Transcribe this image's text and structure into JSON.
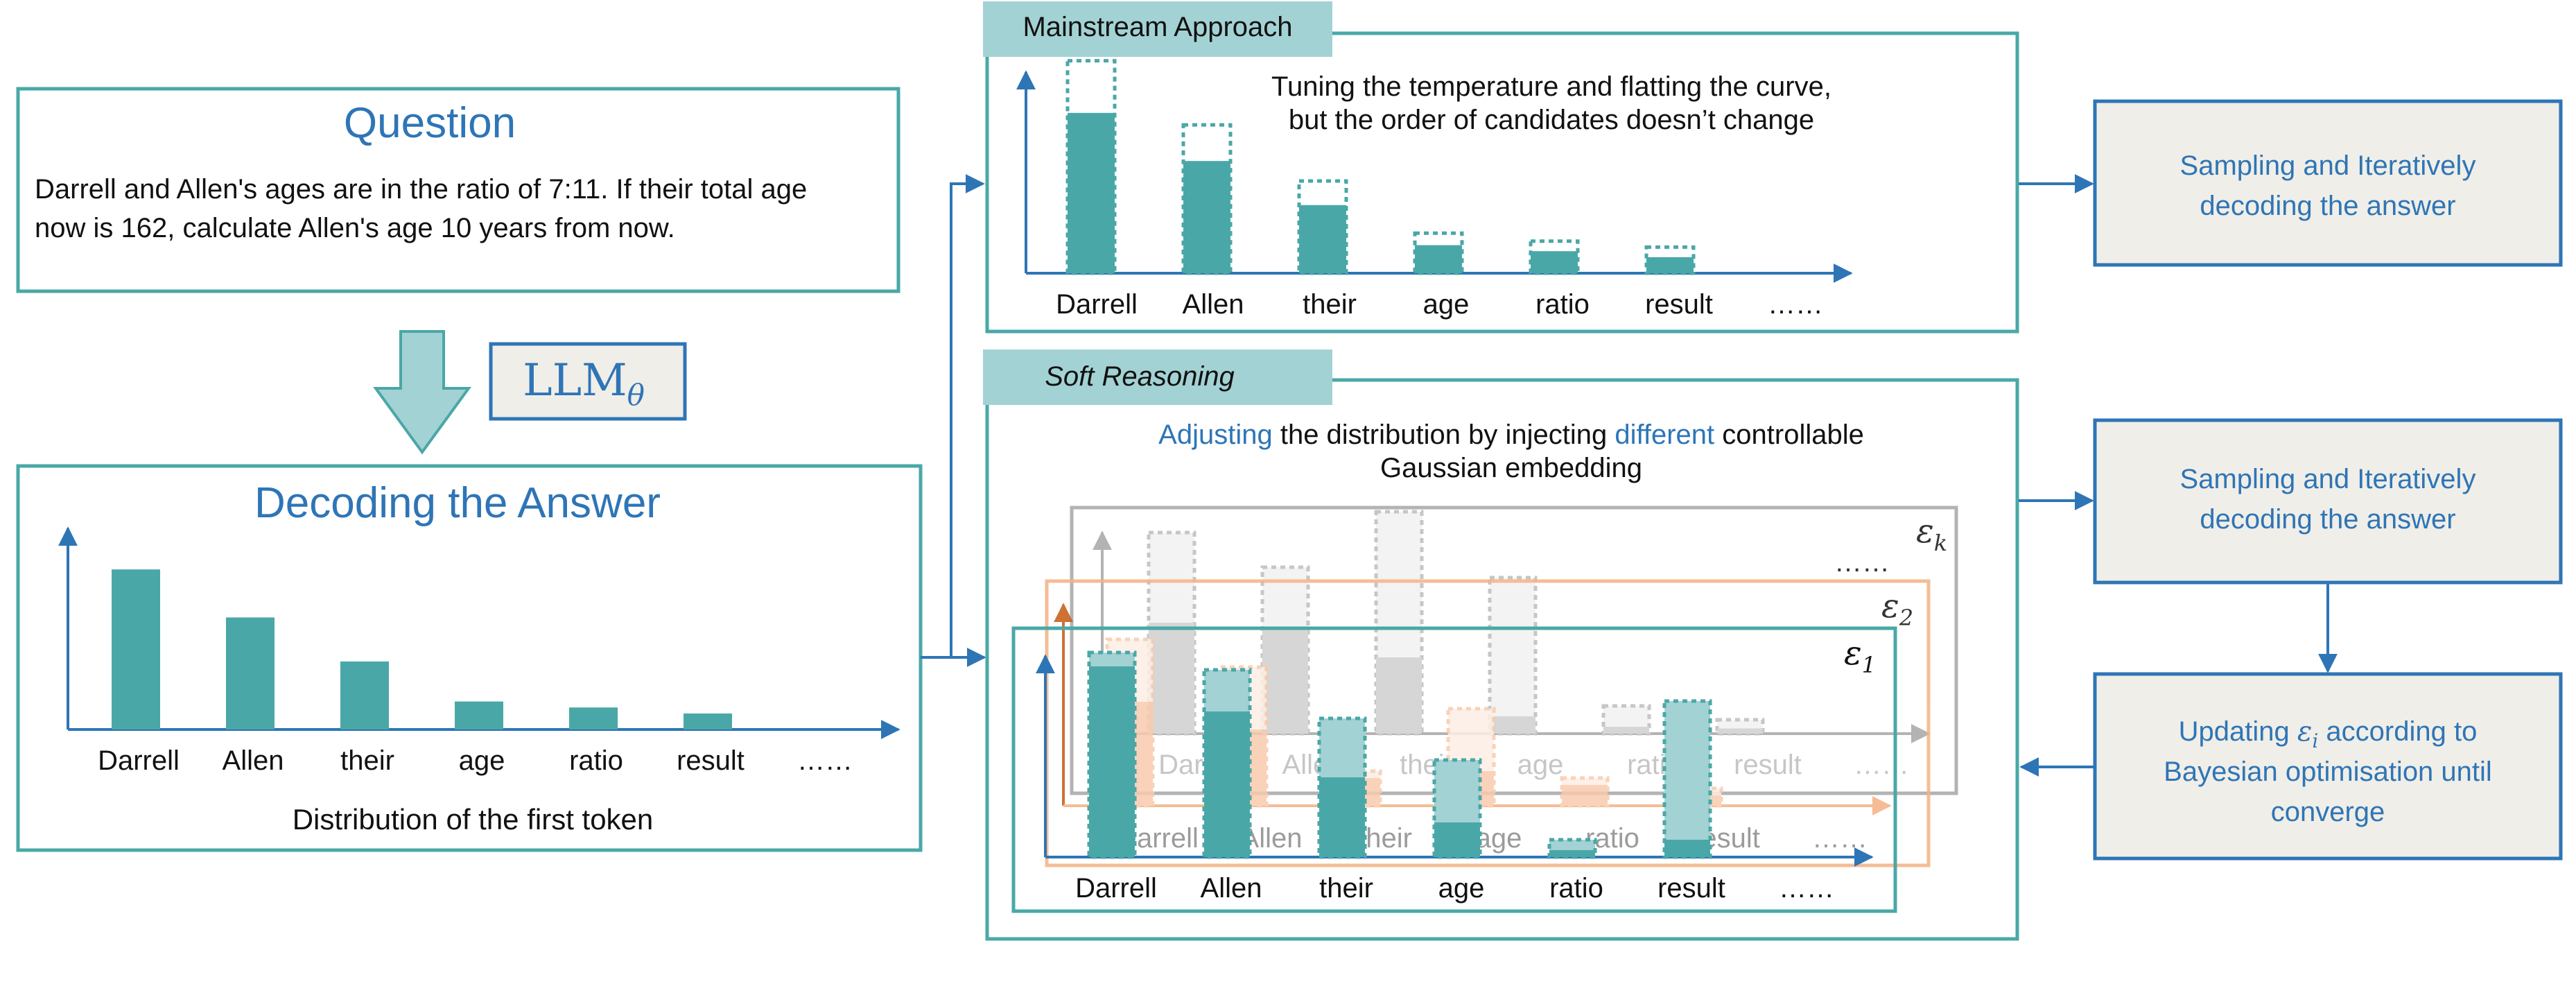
{
  "colors": {
    "teal": "#4aa7a7",
    "teal_border": "#4aa8a8",
    "teal_light": "#a3d2d4",
    "blue": "#2e75b6",
    "blue_text": "#2e75b6",
    "cream": "#f0eee8",
    "orange": "#f4b183",
    "orange_axis": "#c55a11",
    "gray": "#a6a6a6",
    "text": "#111111"
  },
  "question": {
    "title": "Question",
    "line1": "Darrell and Allen's ages are in the ratio of 7:11. If their total age",
    "line2": "now is 162, calculate Allen's age 10 years from now."
  },
  "llm_label": {
    "base": "LLM",
    "subscript": "θ"
  },
  "decoding": {
    "title": "Decoding the Answer",
    "caption": "Distribution of the first token",
    "tokens": [
      "Darrell",
      "Allen",
      "their",
      "age",
      "ratio",
      "result",
      "……"
    ]
  },
  "mainstream": {
    "tab": "Mainstream Approach",
    "note_line1": "Tuning the temperature and flatting the curve,",
    "note_line2": "but the order of candidates doesn’t change",
    "tokens": [
      "Darrell",
      "Allen",
      "their",
      "age",
      "ratio",
      "result",
      "……"
    ]
  },
  "soft": {
    "tab": "Soft Reasoning",
    "note_w1": "Adjusting",
    "note_w2": " the distribution by injecting ",
    "note_w3": "different",
    "note_w4": " controllable",
    "note_line2": "Gaussian embedding",
    "tokens": [
      "Darrell",
      "Allen",
      "their",
      "age",
      "ratio",
      "result",
      "……"
    ],
    "ellipsis": "……",
    "eps_k": "k",
    "eps_2": "2",
    "eps_1": "1",
    "eps_symbol": "ε"
  },
  "right": {
    "box1_line1": "Sampling and Iteratively",
    "box1_line2": "decoding the answer",
    "box2_line1": "Sampling and Iteratively",
    "box2_line2": "decoding the answer",
    "box3_line1a": "Updating ",
    "box3_eps": "ε",
    "box3_sub": "i",
    "box3_line1b": " according to",
    "box3_line2": "Bayesian optimisation until",
    "box3_line3": "converge"
  },
  "chart_data": [
    {
      "type": "bar",
      "title": "",
      "categories": [
        "Darrell",
        "Allen",
        "their",
        "age",
        "ratio",
        "result"
      ],
      "values": [
        0.4,
        0.28,
        0.17,
        0.07,
        0.055,
        0.04
      ],
      "xlabel": "Distribution of the first token",
      "ylabel": ""
    },
    {
      "type": "bar",
      "title": "",
      "categories": [
        "Darrell",
        "Allen",
        "their",
        "age",
        "ratio",
        "result"
      ],
      "series": [
        {
          "values": [
            0.4,
            0.28,
            0.17,
            0.07,
            0.055,
            0.04
          ]
        },
        {
          "values": [
            0.53,
            0.37,
            0.23,
            0.1,
            0.08,
            0.065
          ]
        }
      ],
      "xlabel": "",
      "ylabel": ""
    },
    {
      "type": "bar",
      "title": "",
      "categories": [
        "Darrell",
        "Allen",
        "their",
        "age",
        "ratio",
        "result"
      ],
      "series": [
        {
          "values": [
            0.55,
            0.42,
            0.23,
            0.1,
            0.02,
            0.05
          ]
        },
        {
          "values": [
            0.59,
            0.54,
            0.4,
            0.28,
            0.05,
            0.45
          ]
        }
      ],
      "xlabel": "",
      "ylabel": ""
    }
  ]
}
